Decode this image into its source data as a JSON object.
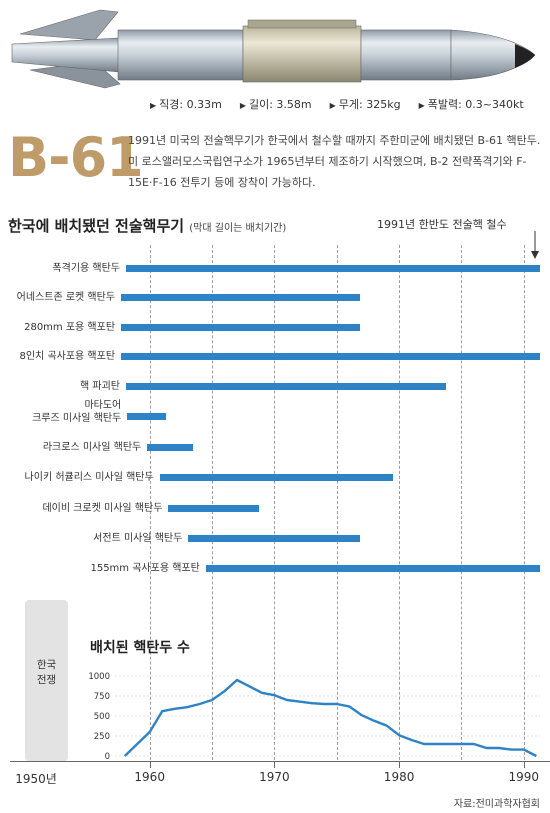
{
  "specs": {
    "diameter": "직경: 0.33m",
    "length": "길이: 3.58m",
    "weight": "무게: 325kg",
    "yield": "폭발력: 0.3~340kt"
  },
  "b61": {
    "name": "B-61",
    "description": "1991년 미국의 전술핵무기가 한국에서 철수할 때까지 주한미군에 배치됐던 B-61 핵탄두. 미 로스앨러모스국립연구소가 1965년부터 제조하기 시작했으며, B-2 전략폭격기와 F-15E·F-16 전투기 등에 장착이 가능하다."
  },
  "timeline": {
    "title": "한국에 배치됐던 전술핵무기",
    "subtitle": "(막대 길이는 배치기간)",
    "withdrawal_note": "1991년 한반도 전술핵 철수"
  },
  "war": {
    "line1": "한국",
    "line2": "전쟁"
  },
  "count_chart": {
    "title": "배치된 핵탄두 수"
  },
  "x_axis": {
    "start_label": "1950년"
  },
  "source": "자료:전미과학자협회",
  "colors": {
    "bar": "#2d83c5",
    "line": "#2d83c5",
    "accent": "#bf9b6a"
  },
  "chart_data": [
    {
      "type": "bar",
      "title": "한국에 배치됐던 전술핵무기",
      "subtitle": "(막대 길이는 배치기간)",
      "categories": [
        "폭격기용 핵탄두",
        "어네스트존 로켓 핵탄두",
        "280mm 포용 핵포탄",
        "8인치 곡사포용 핵포탄",
        "핵 파괴탄",
        "마타도어 크루즈 미사일 핵탄두",
        "라크로스 미사일 핵탄두",
        "나이키 허큘리스 미사일 핵탄두",
        "데이비 크로켓 미사일 핵탄두",
        "서전트 미사일 핵탄두",
        "155mm 곡사포용 핵포탄"
      ],
      "label_lines": [
        [
          "폭격기용 핵탄두"
        ],
        [
          "어네스트존 로켓 핵탄두"
        ],
        [
          "280mm 포용 핵포탄"
        ],
        [
          "8인치 곡사포용 핵포탄"
        ],
        [
          "핵 파괴탄"
        ],
        [
          "마타도어",
          "크루즈 미사일 핵탄두"
        ],
        [
          "라크로스 미사일 핵탄두"
        ],
        [
          "나이키 허큘리스 미사일 핵탄두"
        ],
        [
          "데이비 크로켓 미사일 핵탄두"
        ],
        [
          "서전트 미사일 핵탄두"
        ],
        [
          "155mm 곡사포용 핵포탄"
        ]
      ],
      "series": [
        {
          "start": [
            1958.1,
            1957.7,
            1957.7,
            1957.7,
            1958.1,
            1958.2,
            1959.8,
            1960.8,
            1961.5,
            1963.1,
            1964.5
          ],
          "end": [
            1991.3,
            1976.9,
            1976.9,
            1991.3,
            1983.8,
            1961.3,
            1963.5,
            1979.5,
            1968.8,
            1976.9,
            1991.3
          ]
        }
      ],
      "xlim": [
        1950,
        1991.3
      ],
      "annotations": [
        "1991년 한반도 전술핵 철수"
      ]
    },
    {
      "type": "line",
      "title": "배치된 핵탄두 수",
      "x": [
        1958,
        1959,
        1960,
        1961,
        1962,
        1963,
        1964,
        1965,
        1966,
        1967,
        1968,
        1969,
        1970,
        1971,
        1972,
        1973,
        1974,
        1975,
        1976,
        1977,
        1978,
        1979,
        1980,
        1981,
        1982,
        1983,
        1984,
        1985,
        1986,
        1987,
        1988,
        1989,
        1990,
        1991
      ],
      "y": [
        0,
        150,
        300,
        560,
        590,
        610,
        650,
        700,
        810,
        950,
        870,
        790,
        760,
        700,
        680,
        660,
        650,
        650,
        620,
        510,
        440,
        380,
        260,
        200,
        150,
        150,
        150,
        150,
        150,
        100,
        100,
        80,
        80,
        0
      ],
      "ylim": [
        0,
        1000
      ],
      "y_ticks": [
        0,
        250,
        500,
        750,
        1000
      ],
      "y_tick_labels": [
        "0",
        "250",
        "500",
        "750",
        "1000"
      ],
      "x_ticks": [
        1960,
        1970,
        1980,
        1990
      ],
      "x_tick_labels": [
        "1960",
        "1970",
        "1980",
        "1990"
      ],
      "xlim": [
        1950,
        1991.3
      ]
    }
  ]
}
